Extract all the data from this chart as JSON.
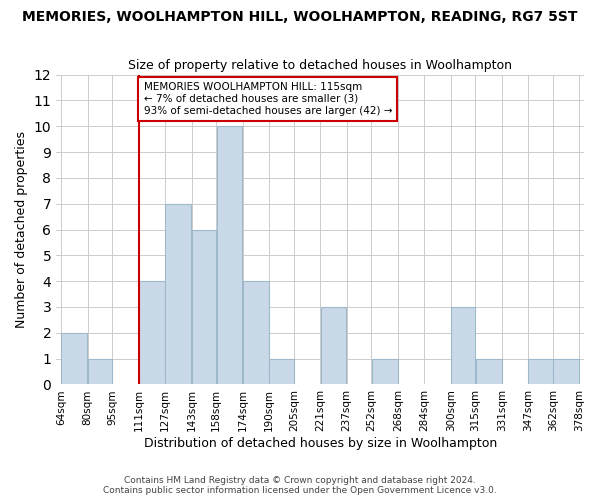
{
  "title": "MEMORIES, WOOLHAMPTON HILL, WOOLHAMPTON, READING, RG7 5ST",
  "subtitle": "Size of property relative to detached houses in Woolhampton",
  "xlabel": "Distribution of detached houses by size in Woolhampton",
  "ylabel": "Number of detached properties",
  "footer_line1": "Contains HM Land Registry data © Crown copyright and database right 2024.",
  "footer_line2": "Contains public sector information licensed under the Open Government Licence v3.0.",
  "bin_edges": [
    64,
    80,
    95,
    111,
    127,
    143,
    158,
    174,
    190,
    205,
    221,
    237,
    252,
    268,
    284,
    300,
    315,
    331,
    347,
    362,
    378
  ],
  "bin_labels": [
    "64sqm",
    "80sqm",
    "95sqm",
    "111sqm",
    "127sqm",
    "143sqm",
    "158sqm",
    "174sqm",
    "190sqm",
    "205sqm",
    "221sqm",
    "237sqm",
    "252sqm",
    "268sqm",
    "284sqm",
    "300sqm",
    "315sqm",
    "331sqm",
    "347sqm",
    "362sqm",
    "378sqm"
  ],
  "bar_heights": [
    2,
    1,
    0,
    4,
    7,
    6,
    10,
    4,
    1,
    0,
    3,
    0,
    1,
    0,
    0,
    3,
    1,
    0,
    1,
    1
  ],
  "bar_color": "#c9d9e8",
  "bar_edgecolor": "#a0b8cc",
  "property_line_x": 111,
  "property_line_color": "#cc0000",
  "annotation_title": "MEMORIES WOOLHAMPTON HILL: 115sqm",
  "annotation_line2": "← 7% of detached houses are smaller (3)",
  "annotation_line3": "93% of semi-detached houses are larger (42) →",
  "annotation_box_edgecolor": "#cc0000",
  "annotation_box_facecolor": "#ffffff",
  "ylim": [
    0,
    12
  ],
  "yticks": [
    0,
    1,
    2,
    3,
    4,
    5,
    6,
    7,
    8,
    9,
    10,
    11,
    12
  ],
  "background_color": "#ffffff",
  "grid_color": "#cccccc"
}
